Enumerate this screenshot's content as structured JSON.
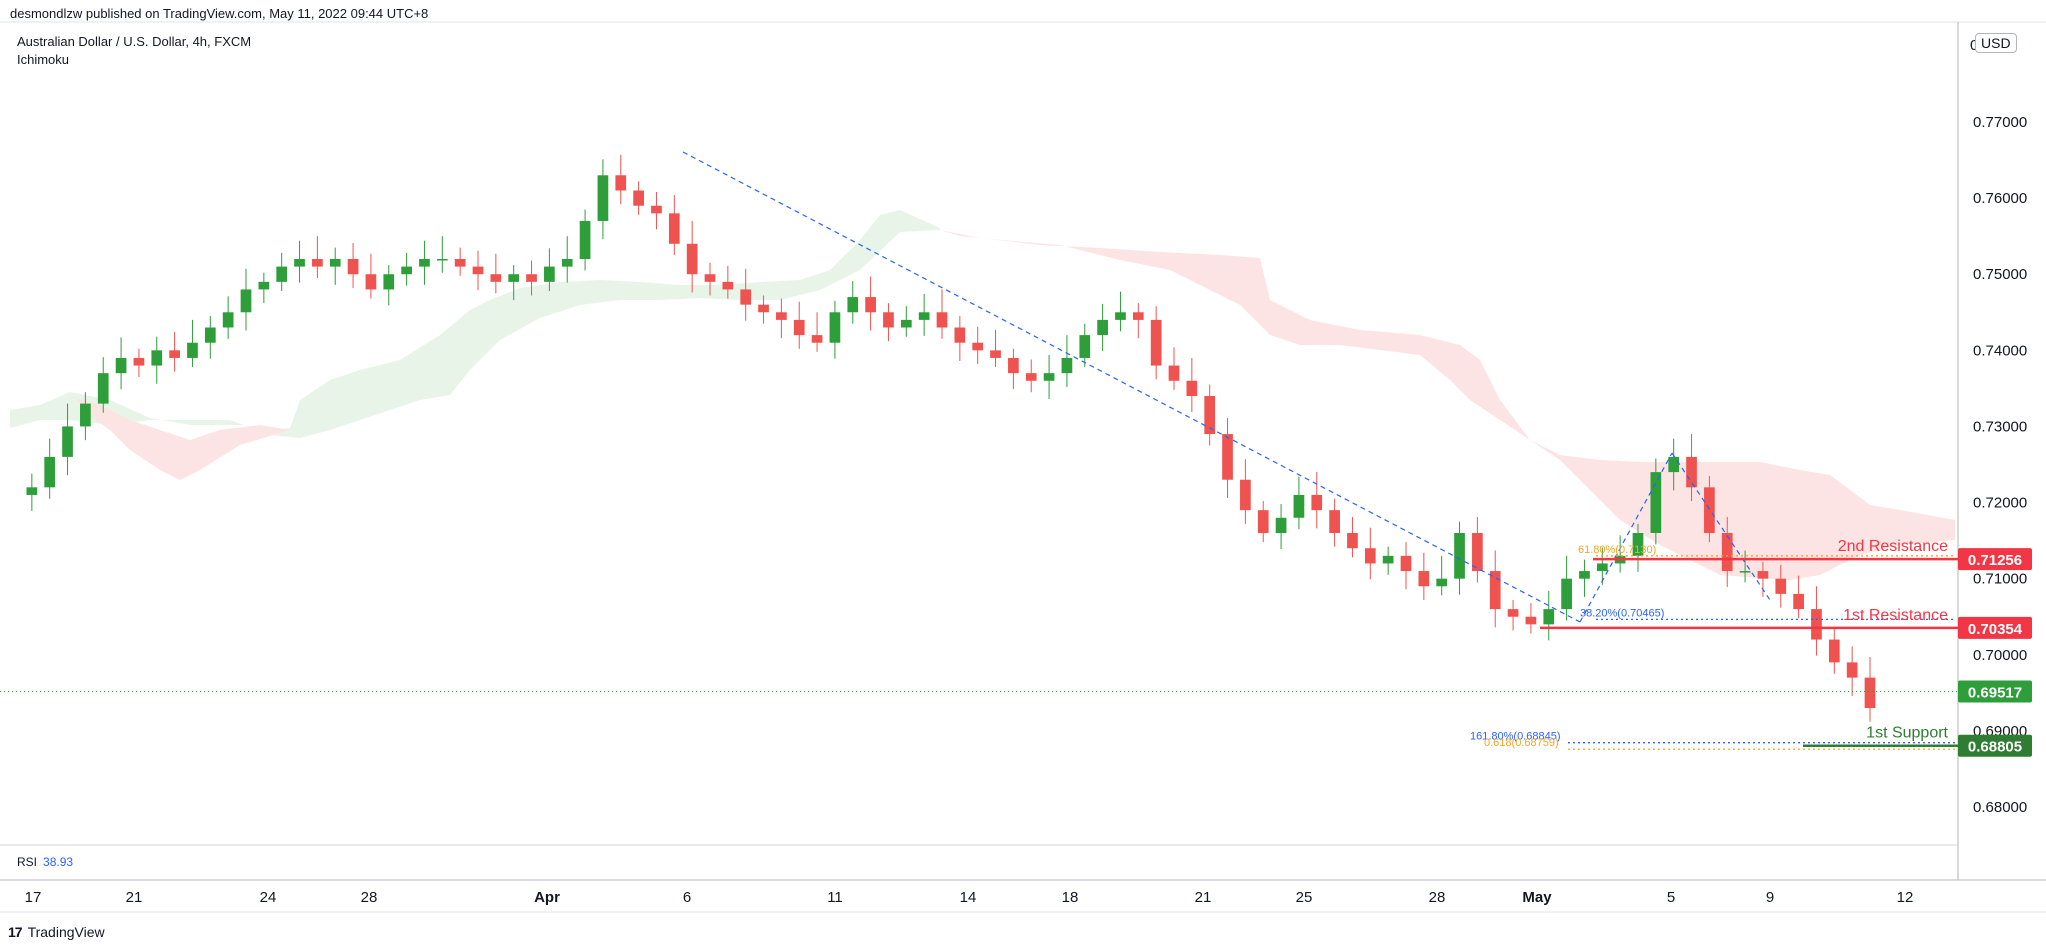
{
  "header": {
    "published": "desmondlzw published on TradingView.com, May 11, 2022 09:44 UTC+8"
  },
  "legend": {
    "symbol": "Australian Dollar / U.S. Dollar, 4h, FXCM",
    "indicator": "Ichimoku"
  },
  "rsi": {
    "label": "RSI",
    "value": "38.93"
  },
  "footer": {
    "brand": "TradingView",
    "logo": "17"
  },
  "price_axis": {
    "currency": "USD",
    "top_label": "0"
  },
  "colors": {
    "up": "#26a69a",
    "up_candle": "#2e9e3a",
    "down": "#ef5350",
    "resistance": "#f23645",
    "support": "#2e7d32",
    "cloud_bull": "#e8f3e8",
    "cloud_bear": "#fde3e3",
    "fib_blue": "#2962ff",
    "fib_orange": "#f5a623"
  },
  "chart_data": {
    "type": "candlestick",
    "title": "Australian Dollar / U.S. Dollar, 4h, FXCM",
    "ylim": [
      0.6745,
      0.7785
    ],
    "y_ticks": [
      "0.77000",
      "0.76000",
      "0.75000",
      "0.74000",
      "0.73000",
      "0.72000",
      "0.71000",
      "0.70000",
      "0.69000",
      "0.68000"
    ],
    "x_ticks": [
      "17",
      "21",
      "24",
      "28",
      "Apr",
      "6",
      "11",
      "14",
      "18",
      "21",
      "25",
      "28",
      "May",
      "5",
      "9",
      "12"
    ],
    "price_path": [
      [
        0.721,
        0.722,
        0.726,
        0.73,
        0.733,
        0.737,
        0.739,
        0.738,
        0.74,
        0.739,
        0.741,
        0.743,
        0.745,
        0.748,
        0.749,
        0.751,
        0.752,
        0.751,
        0.752,
        0.75,
        0.748
      ],
      [
        0.75,
        0.751,
        0.752,
        0.752,
        0.751,
        0.75,
        0.749,
        0.75,
        0.749,
        0.751,
        0.752,
        0.757,
        0.763,
        0.761,
        0.759,
        0.758,
        0.754,
        0.75,
        0.749,
        0.748,
        0.746
      ],
      [
        0.745,
        0.744,
        0.742,
        0.741,
        0.745,
        0.747,
        0.745,
        0.743,
        0.744,
        0.745,
        0.743,
        0.741,
        0.74,
        0.739,
        0.737,
        0.736,
        0.737,
        0.739,
        0.742,
        0.744,
        0.745
      ],
      [
        0.744,
        0.738,
        0.736,
        0.734,
        0.729,
        0.723,
        0.719,
        0.716,
        0.718,
        0.721,
        0.719,
        0.716,
        0.714,
        0.712,
        0.713,
        0.711,
        0.709,
        0.71,
        0.716,
        0.711,
        0.706
      ],
      [
        0.705,
        0.704,
        0.706,
        0.71,
        0.711,
        0.712,
        0.713,
        0.716,
        0.724,
        0.726,
        0.722,
        0.716,
        0.711,
        0.711,
        0.71,
        0.708,
        0.706,
        0.702,
        0.699,
        0.697,
        0.693
      ]
    ],
    "last_price": 0.69517,
    "levels": [
      {
        "name": "2nd Resistance",
        "value": 0.71256,
        "label": "0.71256"
      },
      {
        "name": "1st Resistance",
        "value": 0.70354,
        "label": "0.70354"
      },
      {
        "name": "1st Support",
        "value": 0.68805,
        "label": "0.68805"
      }
    ],
    "current_price_label": "0.69517",
    "fib_labels": [
      {
        "text": "61.80%(0.7130)",
        "value": 0.713,
        "color": "orange"
      },
      {
        "text": "38.20%(0.70465)",
        "value": 0.70465,
        "color": "blue"
      },
      {
        "text": "161.80%(0.68845)",
        "value": 0.68845,
        "color": "blue"
      },
      {
        "text": "0.618(0.68759)",
        "value": 0.68759,
        "color": "orange"
      }
    ]
  }
}
